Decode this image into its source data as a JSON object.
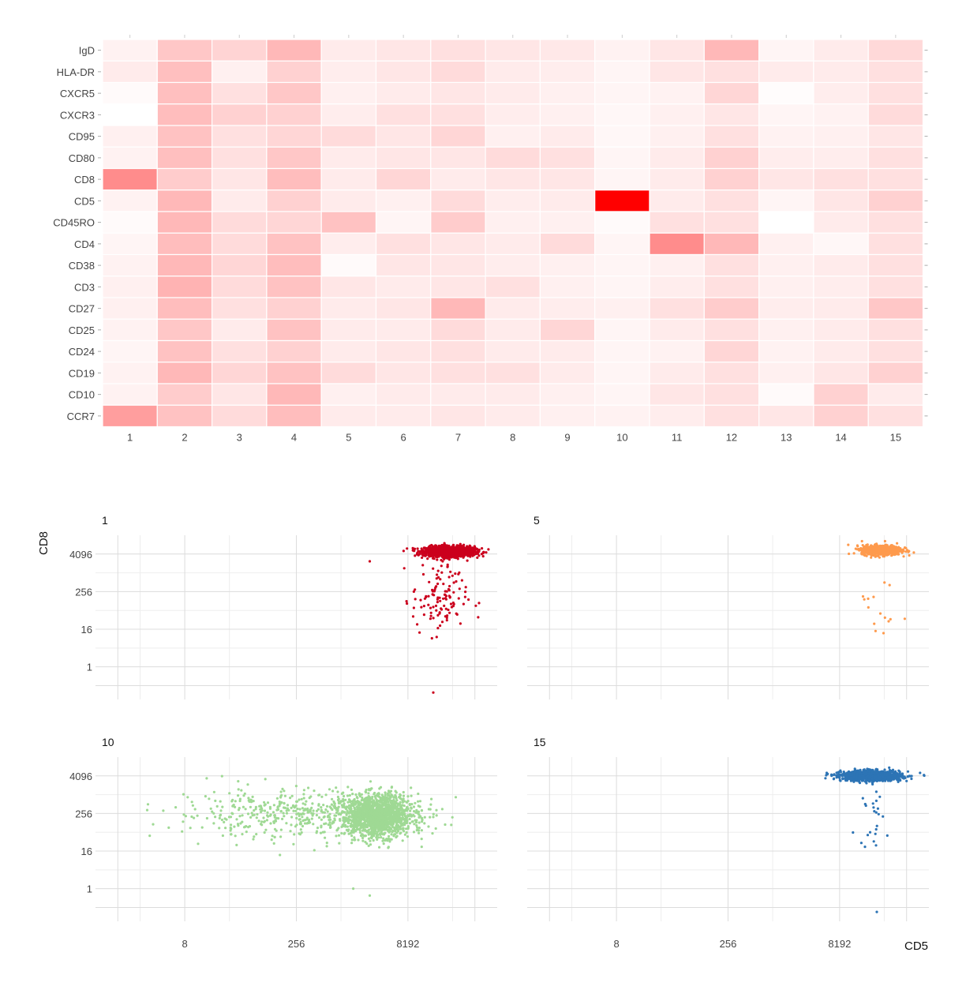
{
  "chart_data": [
    {
      "type": "heatmap",
      "title": "",
      "color_low": "#ffffff",
      "color_high": "#ff0000",
      "x_categories": [
        "1",
        "2",
        "3",
        "4",
        "5",
        "6",
        "7",
        "8",
        "9",
        "10",
        "11",
        "12",
        "13",
        "14",
        "15"
      ],
      "y_categories": [
        "IgD",
        "HLA-DR",
        "CXCR5",
        "CXCR3",
        "CD95",
        "CD80",
        "CD8",
        "CD5",
        "CD45RO",
        "CD4",
        "CD38",
        "CD3",
        "CD27",
        "CD25",
        "CD24",
        "CD19",
        "CD10",
        "CCR7"
      ],
      "values": [
        [
          0.05,
          0.22,
          0.17,
          0.28,
          0.08,
          0.1,
          0.12,
          0.1,
          0.09,
          0.05,
          0.1,
          0.28,
          0.04,
          0.08,
          0.15
        ],
        [
          0.08,
          0.25,
          0.06,
          0.18,
          0.07,
          0.1,
          0.14,
          0.08,
          0.07,
          0.04,
          0.1,
          0.12,
          0.08,
          0.08,
          0.12
        ],
        [
          0.02,
          0.25,
          0.12,
          0.22,
          0.06,
          0.08,
          0.1,
          0.08,
          0.06,
          0.04,
          0.05,
          0.16,
          0.01,
          0.07,
          0.12
        ],
        [
          0.0,
          0.26,
          0.18,
          0.18,
          0.07,
          0.12,
          0.12,
          0.07,
          0.06,
          0.03,
          0.06,
          0.1,
          0.04,
          0.05,
          0.14
        ],
        [
          0.06,
          0.24,
          0.12,
          0.16,
          0.14,
          0.1,
          0.16,
          0.06,
          0.08,
          0.03,
          0.06,
          0.12,
          0.05,
          0.06,
          0.1
        ],
        [
          0.05,
          0.25,
          0.12,
          0.22,
          0.08,
          0.1,
          0.1,
          0.14,
          0.12,
          0.04,
          0.08,
          0.18,
          0.07,
          0.07,
          0.12
        ],
        [
          0.45,
          0.2,
          0.1,
          0.26,
          0.08,
          0.16,
          0.08,
          0.1,
          0.1,
          0.04,
          0.08,
          0.18,
          0.1,
          0.12,
          0.12
        ],
        [
          0.05,
          0.28,
          0.08,
          0.18,
          0.08,
          0.06,
          0.14,
          0.07,
          0.08,
          1.0,
          0.08,
          0.12,
          0.04,
          0.1,
          0.18
        ],
        [
          0.02,
          0.28,
          0.14,
          0.16,
          0.24,
          0.04,
          0.2,
          0.06,
          0.06,
          0.02,
          0.12,
          0.12,
          0.0,
          0.08,
          0.12
        ],
        [
          0.04,
          0.26,
          0.14,
          0.24,
          0.07,
          0.12,
          0.1,
          0.08,
          0.14,
          0.04,
          0.45,
          0.28,
          0.06,
          0.03,
          0.12
        ],
        [
          0.05,
          0.28,
          0.16,
          0.26,
          0.02,
          0.1,
          0.1,
          0.07,
          0.06,
          0.04,
          0.06,
          0.12,
          0.06,
          0.08,
          0.12
        ],
        [
          0.06,
          0.3,
          0.14,
          0.24,
          0.1,
          0.08,
          0.1,
          0.12,
          0.06,
          0.04,
          0.07,
          0.12,
          0.06,
          0.07,
          0.12
        ],
        [
          0.06,
          0.26,
          0.12,
          0.18,
          0.08,
          0.1,
          0.28,
          0.08,
          0.07,
          0.06,
          0.12,
          0.2,
          0.07,
          0.08,
          0.22
        ],
        [
          0.05,
          0.22,
          0.08,
          0.24,
          0.08,
          0.08,
          0.14,
          0.08,
          0.16,
          0.04,
          0.08,
          0.12,
          0.06,
          0.08,
          0.12
        ],
        [
          0.04,
          0.24,
          0.12,
          0.18,
          0.08,
          0.1,
          0.12,
          0.08,
          0.08,
          0.04,
          0.05,
          0.16,
          0.05,
          0.08,
          0.12
        ],
        [
          0.05,
          0.28,
          0.16,
          0.24,
          0.14,
          0.1,
          0.12,
          0.12,
          0.08,
          0.04,
          0.08,
          0.12,
          0.06,
          0.1,
          0.18
        ],
        [
          0.05,
          0.2,
          0.1,
          0.28,
          0.06,
          0.08,
          0.08,
          0.08,
          0.06,
          0.04,
          0.1,
          0.12,
          0.02,
          0.18,
          0.08
        ],
        [
          0.38,
          0.24,
          0.14,
          0.26,
          0.08,
          0.08,
          0.1,
          0.08,
          0.06,
          0.05,
          0.07,
          0.12,
          0.1,
          0.18,
          0.12
        ]
      ]
    },
    {
      "type": "scatter",
      "xlabel": "CD5",
      "ylabel": "CD8",
      "scale": "log2",
      "xlim": [
        0.5,
        131072
      ],
      "ylim": [
        0.09,
        16384
      ],
      "x_ticks": [
        8,
        256,
        8192
      ],
      "x_tick_labels": [
        "8",
        "256",
        "8192"
      ],
      "y_ticks": [
        1,
        16,
        256,
        4096
      ],
      "y_tick_labels": [
        "1",
        "16",
        "256",
        "4096"
      ],
      "panels": [
        {
          "title": "1",
          "color": "#cb001d",
          "clusters": [
            {
              "x_center": 30000,
              "y_center": 5000,
              "x_spread": 0.25,
              "y_spread": 0.12,
              "count": 1500
            },
            {
              "x_center": 22000,
              "y_center": 160,
              "x_spread": 0.28,
              "y_spread": 0.9,
              "count": 120
            }
          ],
          "points": [
            [
              2500,
              2400
            ],
            [
              18000,
              0.15
            ],
            [
              20000,
              9
            ],
            [
              13000,
              1800
            ]
          ]
        },
        {
          "title": "5",
          "color": "#fe9a4d",
          "clusters": [
            {
              "x_center": 30000,
              "y_center": 5500,
              "x_spread": 0.2,
              "y_spread": 0.12,
              "count": 700
            },
            {
              "x_center": 30000,
              "y_center": 120,
              "x_spread": 0.2,
              "y_spread": 1.0,
              "count": 12
            }
          ],
          "points": [
            [
              20000,
              80
            ],
            [
              25000,
              14
            ],
            [
              32000,
              12
            ]
          ]
        },
        {
          "title": "10",
          "color": "#9fd994",
          "clusters": [
            {
              "x_center": 3200,
              "y_center": 220,
              "x_spread": 0.35,
              "y_spread": 0.5,
              "count": 1500
            },
            {
              "x_center": 300,
              "y_center": 250,
              "x_spread": 1.3,
              "y_spread": 0.6,
              "count": 500
            }
          ],
          "points": [
            [
              10,
              600
            ],
            [
              16,
              180
            ],
            [
              40,
              25
            ],
            [
              1500,
              1.0
            ],
            [
              2500,
              0.6
            ],
            [
              9000,
              1700
            ]
          ]
        },
        {
          "title": "15",
          "color": "#2d74b5",
          "clusters": [
            {
              "x_center": 22000,
              "y_center": 4100,
              "x_spread": 0.3,
              "y_spread": 0.12,
              "count": 1200
            },
            {
              "x_center": 22000,
              "y_center": 200,
              "x_spread": 0.25,
              "y_spread": 0.8,
              "count": 25
            }
          ],
          "points": [
            [
              18000,
              22
            ],
            [
              26000,
              0.18
            ]
          ]
        }
      ]
    }
  ]
}
